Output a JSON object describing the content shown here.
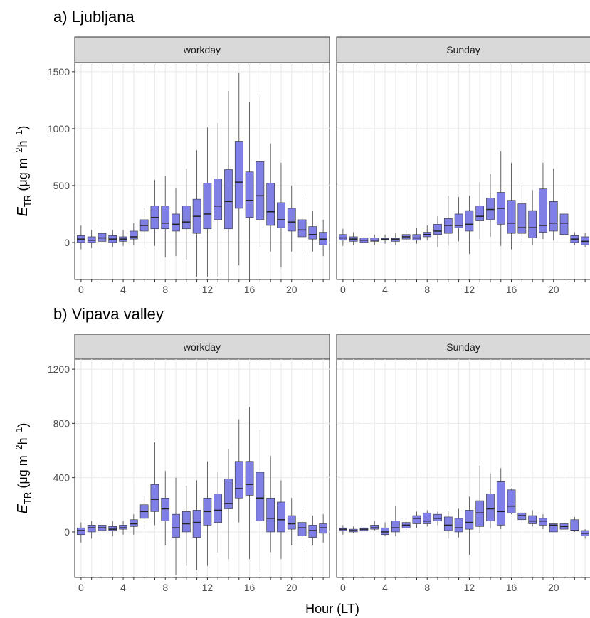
{
  "chart_data": [
    {
      "type": "box",
      "title": "a) Ljubljana",
      "panel": "workday",
      "ylabel": [
        "E",
        "TR",
        " (μg m",
        "−2",
        "h",
        "−1",
        ")"
      ],
      "x": [
        0,
        1,
        2,
        3,
        4,
        5,
        6,
        7,
        8,
        9,
        10,
        11,
        12,
        13,
        14,
        15,
        16,
        17,
        18,
        19,
        20,
        21,
        22,
        23
      ],
      "whislo": [
        -60,
        -50,
        -40,
        -40,
        -30,
        -20,
        -50,
        -30,
        -130,
        -120,
        -150,
        -300,
        -300,
        -300,
        -330,
        -200,
        -330,
        -60,
        -80,
        -220,
        -80,
        -80,
        -80,
        -120
      ],
      "q1": [
        0,
        0,
        10,
        0,
        10,
        30,
        100,
        120,
        120,
        100,
        120,
        80,
        120,
        200,
        120,
        300,
        220,
        200,
        150,
        130,
        100,
        50,
        30,
        -20
      ],
      "median": [
        30,
        20,
        40,
        30,
        30,
        50,
        150,
        220,
        170,
        160,
        180,
        230,
        250,
        320,
        360,
        530,
        370,
        410,
        270,
        200,
        180,
        110,
        70,
        30
      ],
      "q3": [
        60,
        50,
        80,
        60,
        50,
        100,
        200,
        320,
        320,
        250,
        320,
        380,
        520,
        560,
        640,
        890,
        620,
        710,
        520,
        350,
        300,
        200,
        140,
        90
      ],
      "whishi": [
        150,
        110,
        140,
        110,
        110,
        170,
        300,
        550,
        580,
        480,
        650,
        810,
        1010,
        1050,
        1330,
        1490,
        1230,
        1290,
        870,
        700,
        500,
        400,
        280,
        200
      ],
      "color": "#7f7fe6",
      "xlim": [
        -0.6,
        23.6
      ],
      "xticks": [
        0,
        4,
        8,
        12,
        16,
        20
      ],
      "ylim": [
        -325,
        1580
      ],
      "yticks": [
        0,
        500,
        1000,
        1500
      ],
      "grid": true
    },
    {
      "type": "box",
      "panel": "Sunday",
      "x": [
        0,
        1,
        2,
        3,
        4,
        5,
        6,
        7,
        8,
        9,
        10,
        11,
        12,
        13,
        14,
        15,
        16,
        17,
        18,
        19,
        20,
        21,
        22,
        23
      ],
      "whislo": [
        -30,
        -20,
        -20,
        -20,
        -10,
        -20,
        0,
        -10,
        20,
        -40,
        -30,
        10,
        -100,
        30,
        50,
        -30,
        -60,
        0,
        -20,
        30,
        20,
        40,
        -20,
        -40
      ],
      "q1": [
        20,
        10,
        0,
        10,
        20,
        10,
        30,
        20,
        50,
        70,
        80,
        130,
        100,
        190,
        200,
        160,
        80,
        80,
        40,
        90,
        100,
        70,
        0,
        -20
      ],
      "median": [
        40,
        30,
        20,
        20,
        30,
        30,
        50,
        40,
        70,
        100,
        150,
        150,
        160,
        230,
        290,
        300,
        170,
        130,
        130,
        150,
        170,
        170,
        30,
        10
      ],
      "q3": [
        70,
        50,
        40,
        40,
        40,
        40,
        70,
        70,
        90,
        160,
        210,
        250,
        280,
        320,
        390,
        440,
        370,
        340,
        280,
        470,
        360,
        250,
        60,
        50
      ],
      "whishi": [
        120,
        90,
        80,
        70,
        70,
        80,
        110,
        130,
        150,
        230,
        410,
        400,
        410,
        530,
        600,
        800,
        700,
        500,
        460,
        700,
        650,
        450,
        90,
        80
      ],
      "color": "#7f7fe6",
      "xlim": [
        -0.6,
        23.6
      ],
      "xticks": [
        0,
        4,
        8,
        12,
        16,
        20
      ],
      "ylim": [
        -325,
        1580
      ],
      "yticks": [
        0,
        500,
        1000,
        1500
      ],
      "grid": true
    },
    {
      "type": "box",
      "title": "b) Vipava valley",
      "panel": "workday",
      "ylabel": [
        "E",
        "TR",
        " (μg m",
        "−2",
        "h",
        "−1",
        ")"
      ],
      "xlabel": "Hour (LT)",
      "x": [
        0,
        1,
        2,
        3,
        4,
        5,
        6,
        7,
        8,
        9,
        10,
        11,
        12,
        13,
        14,
        15,
        16,
        17,
        18,
        19,
        20,
        21,
        22,
        23
      ],
      "whislo": [
        -80,
        -50,
        -40,
        -30,
        -20,
        -20,
        30,
        50,
        -100,
        -320,
        -250,
        -280,
        -250,
        -150,
        -200,
        70,
        -200,
        -280,
        -150,
        -200,
        -100,
        -120,
        -100,
        -80
      ],
      "q1": [
        -20,
        0,
        10,
        10,
        20,
        40,
        100,
        150,
        80,
        -40,
        0,
        -40,
        50,
        70,
        170,
        250,
        270,
        80,
        0,
        0,
        20,
        -30,
        -40,
        -10
      ],
      "median": [
        10,
        30,
        30,
        20,
        30,
        60,
        150,
        240,
        170,
        30,
        60,
        70,
        150,
        160,
        210,
        320,
        350,
        250,
        100,
        90,
        60,
        30,
        10,
        30
      ],
      "q3": [
        30,
        50,
        50,
        40,
        50,
        90,
        200,
        350,
        250,
        130,
        150,
        160,
        250,
        280,
        390,
        520,
        520,
        440,
        250,
        220,
        120,
        70,
        50,
        60
      ],
      "whishi": [
        70,
        80,
        90,
        80,
        80,
        130,
        270,
        660,
        450,
        400,
        340,
        380,
        520,
        440,
        610,
        830,
        920,
        750,
        560,
        380,
        250,
        150,
        120,
        130
      ],
      "color": "#7f7fe6",
      "xlim": [
        -0.6,
        23.6
      ],
      "xticks": [
        0,
        4,
        8,
        12,
        16,
        20
      ],
      "ylim": [
        -336,
        1274
      ],
      "yticks": [
        0,
        400,
        800,
        1200
      ],
      "grid": true
    },
    {
      "type": "box",
      "panel": "Sunday",
      "x": [
        0,
        1,
        2,
        3,
        4,
        5,
        6,
        7,
        8,
        9,
        10,
        11,
        12,
        13,
        14,
        15,
        16,
        17,
        18,
        19,
        20,
        21,
        22,
        23
      ],
      "whislo": [
        -20,
        -10,
        -20,
        10,
        -30,
        -30,
        0,
        30,
        40,
        50,
        -50,
        -40,
        -170,
        -10,
        30,
        20,
        130,
        70,
        40,
        20,
        0,
        0,
        0,
        -50
      ],
      "q1": [
        10,
        0,
        10,
        20,
        -20,
        0,
        30,
        60,
        60,
        80,
        10,
        0,
        20,
        40,
        80,
        50,
        140,
        90,
        60,
        50,
        0,
        20,
        10,
        -30
      ],
      "median": [
        20,
        10,
        20,
        30,
        0,
        30,
        50,
        100,
        80,
        100,
        50,
        30,
        70,
        140,
        170,
        150,
        190,
        120,
        80,
        80,
        50,
        40,
        10,
        -10
      ],
      "q3": [
        30,
        20,
        30,
        50,
        30,
        80,
        70,
        120,
        140,
        130,
        110,
        100,
        160,
        230,
        280,
        370,
        310,
        140,
        120,
        100,
        60,
        60,
        90,
        10
      ],
      "whishi": [
        50,
        40,
        60,
        80,
        70,
        190,
        80,
        150,
        160,
        150,
        150,
        170,
        260,
        490,
        430,
        470,
        320,
        150,
        160,
        130,
        60,
        90,
        110,
        20
      ],
      "color": "#7f7fe6",
      "xlim": [
        -0.6,
        23.6
      ],
      "xticks": [
        0,
        4,
        8,
        12,
        16,
        20
      ],
      "ylim": [
        -336,
        1274
      ],
      "yticks": [
        0,
        400,
        800,
        1200
      ],
      "grid": true
    }
  ]
}
